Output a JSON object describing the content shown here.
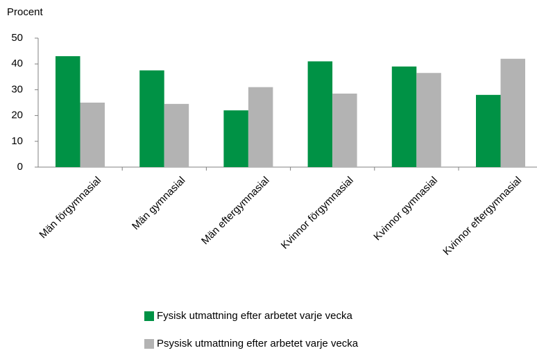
{
  "chart_data": {
    "type": "bar",
    "y_label": "Procent",
    "categories": [
      "Män förgymnasial",
      "Män gymnasial",
      "Män eftergymnasial",
      "Kvinnor förgymnasial",
      "Kvinnor gymnasial",
      "Kvinnor eftergymnasial"
    ],
    "series": [
      {
        "name": "Fysisk utmattning efter arbetet varje vecka",
        "color": "#009245",
        "values": [
          43,
          37.5,
          22,
          41,
          39,
          28
        ]
      },
      {
        "name": "Psysisk utmattning efter arbetet varje vecka",
        "color": "#b3b3b3",
        "values": [
          25,
          24.5,
          31,
          28.5,
          36.5,
          42
        ]
      }
    ],
    "ylim": [
      0,
      50
    ],
    "yticks": [
      0,
      10,
      20,
      30,
      40,
      50
    ],
    "grid": false
  }
}
